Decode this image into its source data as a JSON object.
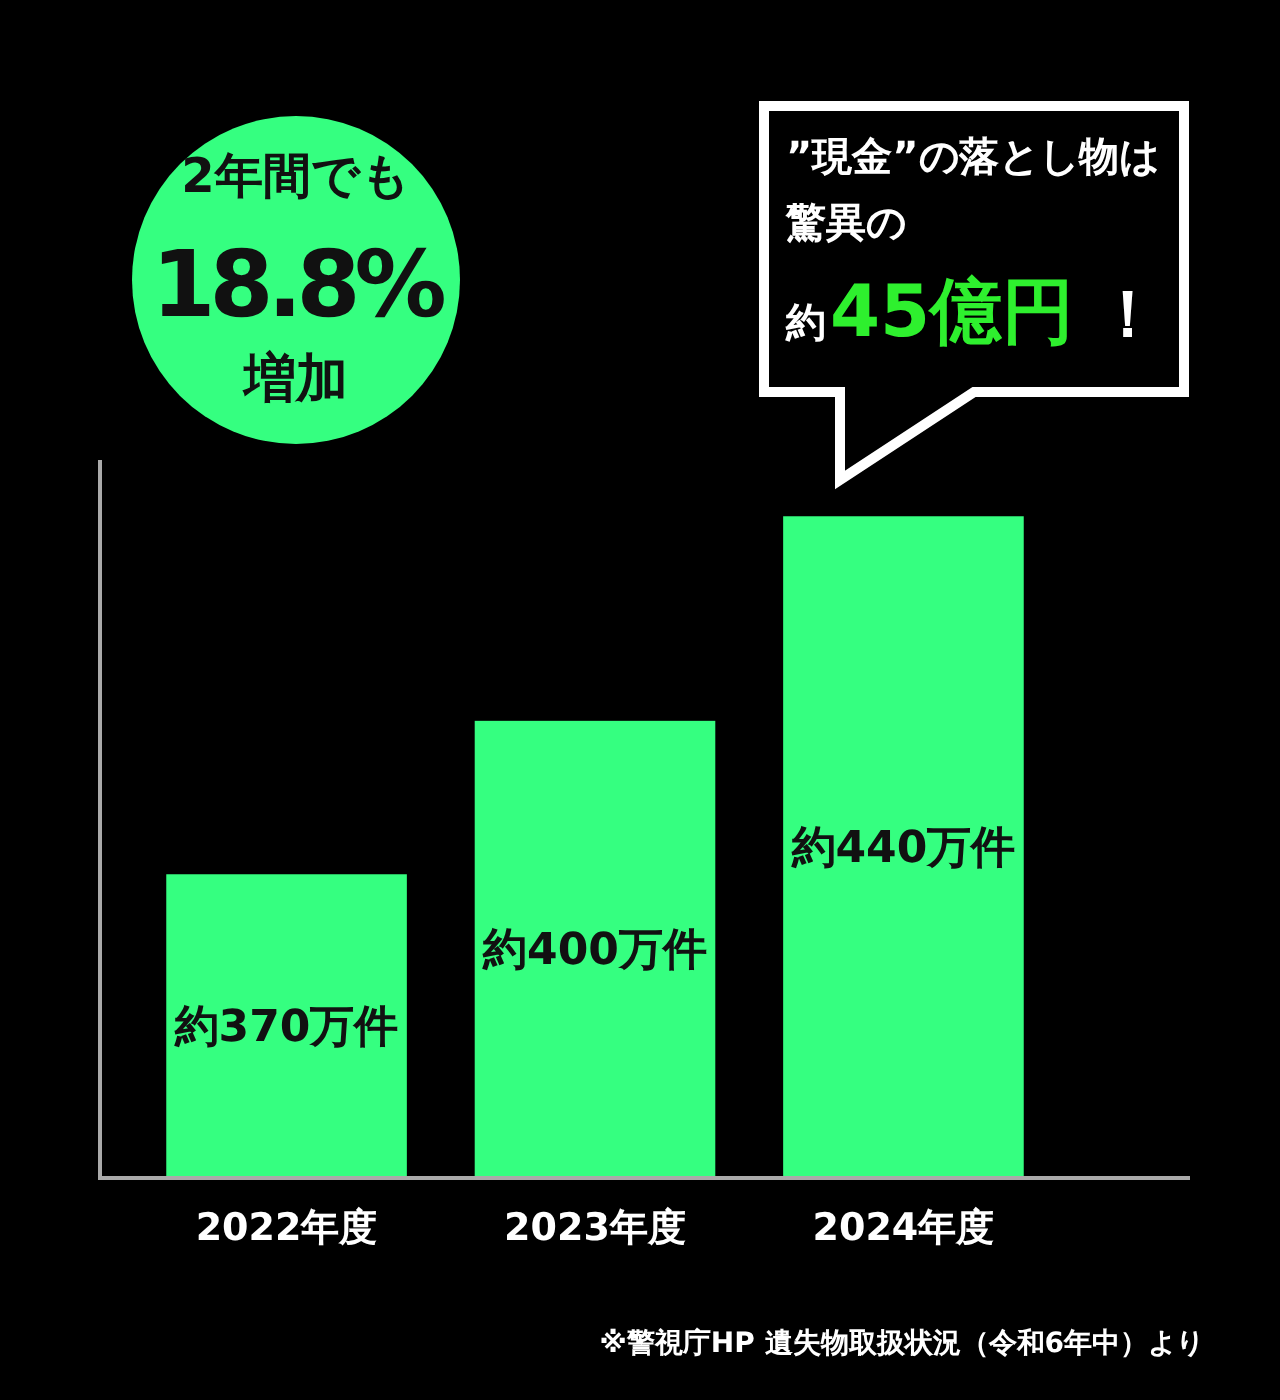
{
  "chart_data": {
    "type": "bar",
    "categories": [
      "2022年度",
      "2023年度",
      "2024年度"
    ],
    "values": [
      370,
      400,
      440
    ],
    "color": "#35ff80",
    "value_labels": [
      "約370万件",
      "約400万件",
      "約440万件"
    ],
    "ylim": [
      311,
      451
    ],
    "tick_labels": "x",
    "annotations": [
      "2年間でも",
      "18.8%",
      "増加",
      "”現金”の落とし物は",
      "驚異の",
      "約",
      "45億円",
      "！",
      "※警視庁HP 遺失物取扱状況（令和6年中）より"
    ]
  }
}
